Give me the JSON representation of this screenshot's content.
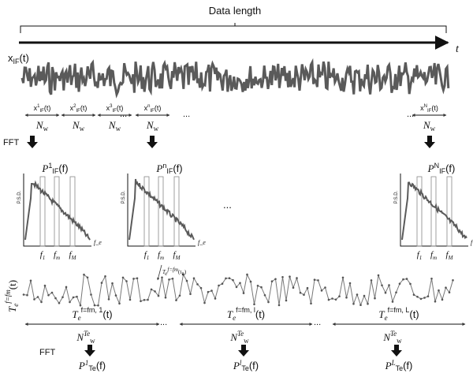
{
  "title": "Data length",
  "time_axis_label": "t",
  "signal_label": "x",
  "signal_sub": "IF",
  "signal_arg": "(t)",
  "window_label": "N",
  "window_sub": "w",
  "fft_label": "FFT",
  "ellipsis": "...",
  "segments": [
    {
      "sup": "1",
      "sub": "IF",
      "arg": "(t)"
    },
    {
      "sup": "2",
      "sub": "IF",
      "arg": "(t)"
    },
    {
      "sup": "3",
      "sub": "IF",
      "arg": "(t)"
    },
    {
      "sup": "n",
      "sub": "IF",
      "arg": "(t)"
    },
    {
      "sup": "N",
      "sub": "IF",
      "arg": "(t)"
    }
  ],
  "psd_titles": [
    {
      "base": "P",
      "sup": "1",
      "sub": "IF",
      "arg": "(f)"
    },
    {
      "base": "P",
      "sup": "n",
      "sub": "IF",
      "arg": "(f)"
    },
    {
      "base": "P",
      "sup": "N",
      "sub": "IF",
      "arg": "(f)"
    }
  ],
  "psd_ylabel": "P.S.D.",
  "psd_xlabels": [
    "f_e",
    "f_e",
    "f"
  ],
  "freq_labels": {
    "f1": "f",
    "f1_sub": "1",
    "fm": "f",
    "fm_sub": "m",
    "fM": "f",
    "fM_sub": "M"
  },
  "te_label": {
    "base": "T",
    "sub": "e",
    "sup": "f=fm"
  },
  "te_arg": "(t)",
  "te_marker": {
    "base": "T",
    "sub": "e",
    "sup": "f=fm",
    "arg": "(t",
    "arg_sub": "n",
    "arg_end": ")"
  },
  "te_segments": [
    {
      "base": "T",
      "sub": "e",
      "sup": "f=fm, 1",
      "arg": "(t)"
    },
    {
      "base": "T",
      "sub": "e",
      "sup": "f=fm, l",
      "arg": "(t)"
    },
    {
      "base": "T",
      "sub": "e",
      "sup": "f=fm, L",
      "arg": "(t)"
    }
  ],
  "te_window": {
    "base": "N",
    "sup": "Te",
    "sub": "w"
  },
  "te_psd": [
    {
      "base": "P",
      "sup": "1",
      "sub": "Te",
      "arg": "(f)"
    },
    {
      "base": "P",
      "sup": "l",
      "sub": "Te",
      "arg": "(f)"
    },
    {
      "base": "P",
      "sup": "L",
      "sub": "Te",
      "arg": "(f)"
    }
  ],
  "colors": {
    "signal": "#5a5a5a",
    "stroke": "#111111",
    "band": "#888888"
  }
}
